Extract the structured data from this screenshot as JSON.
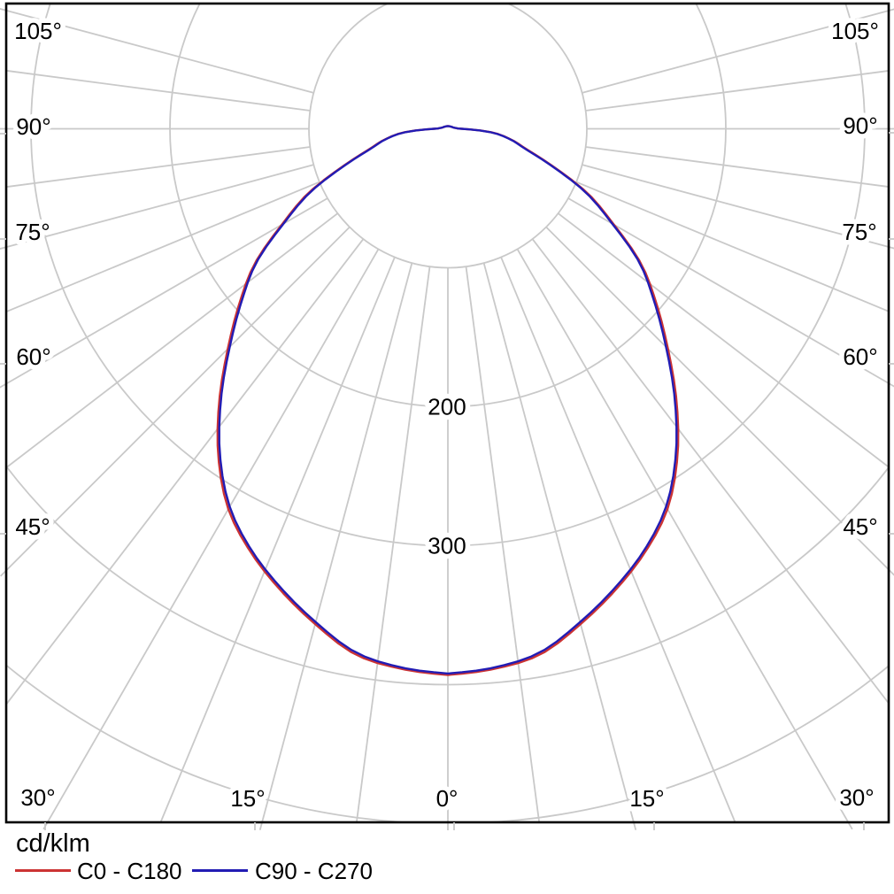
{
  "title": {
    "unit": "cd/klm"
  },
  "legend": {
    "series": [
      {
        "label": "C0 - C180",
        "color": "#cc3333"
      },
      {
        "label": "C90 - C270",
        "color": "#221cb4"
      }
    ]
  },
  "angle_labels": [
    {
      "angle": -105,
      "text": "105°"
    },
    {
      "angle": -90,
      "text": "90°"
    },
    {
      "angle": -75,
      "text": "75°"
    },
    {
      "angle": -60,
      "text": "60°"
    },
    {
      "angle": -45,
      "text": "45°"
    },
    {
      "angle": -30,
      "text": "30°"
    },
    {
      "angle": -15,
      "text": "15°"
    },
    {
      "angle": 0,
      "text": "0°"
    },
    {
      "angle": 15,
      "text": "15°"
    },
    {
      "angle": 30,
      "text": "30°"
    },
    {
      "angle": 45,
      "text": "45°"
    },
    {
      "angle": 60,
      "text": "60°"
    },
    {
      "angle": 75,
      "text": "75°"
    },
    {
      "angle": 90,
      "text": "90°"
    },
    {
      "angle": 105,
      "text": "105°"
    }
  ],
  "chart_data": {
    "type": "line",
    "subtype": "polar-photometric-intensity",
    "title": "",
    "units": "cd/klm",
    "legend_position": "bottom-left",
    "angle_axis": {
      "zero_direction": "down",
      "labeled_min_deg": -105,
      "labeled_max_deg": 105,
      "label_step_deg": 15,
      "grid_step_deg": 7.5,
      "tick_labels": [
        "0°",
        "15°",
        "30°",
        "45°",
        "60°",
        "75°",
        "90°",
        "105°"
      ]
    },
    "radial_axis": {
      "rings_cd_per_klm": [
        100,
        200,
        300,
        400,
        500
      ],
      "labeled_rings": [
        "200",
        "300"
      ],
      "grid_on": true
    },
    "series": [
      {
        "name": "C0 - C180",
        "color": "#cc3333",
        "points_deg_cd": [
          [
            0,
            393
          ],
          [
            5,
            390
          ],
          [
            10,
            384
          ],
          [
            15,
            369
          ],
          [
            20,
            353
          ],
          [
            25,
            336
          ],
          [
            30,
            316
          ],
          [
            35,
            288
          ],
          [
            40,
            256
          ],
          [
            45,
            224
          ],
          [
            50,
            196
          ],
          [
            55,
            170
          ],
          [
            60,
            138
          ],
          [
            65,
            112
          ],
          [
            70,
            82
          ],
          [
            75,
            60
          ],
          [
            80,
            47
          ],
          [
            85,
            33
          ],
          [
            90,
            10
          ],
          [
            95,
            6
          ],
          [
            100,
            4.5
          ],
          [
            110,
            3.5
          ],
          [
            130,
            2.5
          ],
          [
            160,
            2
          ],
          [
            180,
            2
          ]
        ]
      },
      {
        "name": "C90 - C270",
        "color": "#221cb4",
        "points_deg_cd": [
          [
            0,
            392
          ],
          [
            5,
            389
          ],
          [
            10,
            382.5
          ],
          [
            15,
            367.5
          ],
          [
            20,
            351.5
          ],
          [
            25,
            334.5
          ],
          [
            30,
            314
          ],
          [
            35,
            286
          ],
          [
            40,
            254
          ],
          [
            45,
            222
          ],
          [
            50,
            194
          ],
          [
            55,
            168.5
          ],
          [
            60,
            136.5
          ],
          [
            65,
            110.5
          ],
          [
            70,
            81
          ],
          [
            75,
            59
          ],
          [
            80,
            46.5
          ],
          [
            85,
            32.5
          ],
          [
            90,
            10
          ],
          [
            95,
            6
          ],
          [
            100,
            4.5
          ],
          [
            110,
            3.5
          ],
          [
            130,
            2.5
          ],
          [
            160,
            2
          ],
          [
            180,
            1.8
          ]
        ]
      }
    ]
  }
}
